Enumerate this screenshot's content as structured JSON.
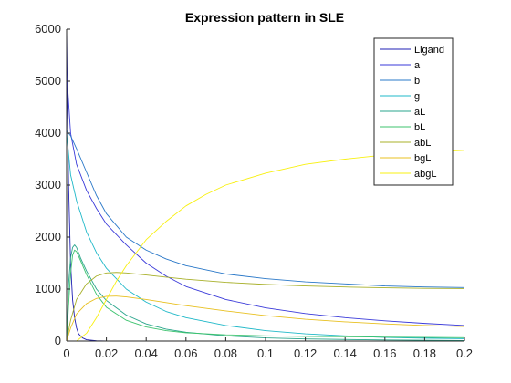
{
  "chart_data": {
    "type": "line",
    "title": "Expression pattern in SLE",
    "xlabel": "",
    "ylabel": "",
    "xlim": [
      0,
      0.2
    ],
    "ylim": [
      0,
      6000
    ],
    "xticks": [
      0,
      0.02,
      0.04,
      0.06,
      0.08,
      0.1,
      0.12,
      0.14,
      0.16,
      0.18,
      0.2
    ],
    "xtick_labels": [
      "0",
      "0.02",
      "0.04",
      "0.06",
      "0.08",
      "0.1",
      "0.12",
      "0.14",
      "0.16",
      "0.18",
      "0.2"
    ],
    "yticks": [
      0,
      1000,
      2000,
      3000,
      4000,
      5000,
      6000
    ],
    "ytick_labels": [
      "0",
      "1000",
      "2000",
      "3000",
      "4000",
      "5000",
      "6000"
    ],
    "grid": false,
    "legend_position": "top-right",
    "series": [
      {
        "name": "Ligand",
        "color": "#1f1fb4",
        "points": [
          [
            0,
            6000
          ],
          [
            0.0005,
            4300
          ],
          [
            0.001,
            3000
          ],
          [
            0.002,
            1500
          ],
          [
            0.003,
            800
          ],
          [
            0.004,
            450
          ],
          [
            0.005,
            250
          ],
          [
            0.006,
            140
          ],
          [
            0.008,
            60
          ],
          [
            0.01,
            25
          ],
          [
            0.015,
            5
          ],
          [
            0.02,
            0
          ],
          [
            0.2,
            0
          ]
        ]
      },
      {
        "name": "a",
        "color": "#3a3ad9",
        "points": [
          [
            0,
            5200
          ],
          [
            0.002,
            4000
          ],
          [
            0.005,
            3400
          ],
          [
            0.01,
            2900
          ],
          [
            0.015,
            2550
          ],
          [
            0.02,
            2250
          ],
          [
            0.03,
            1850
          ],
          [
            0.04,
            1500
          ],
          [
            0.05,
            1250
          ],
          [
            0.06,
            1050
          ],
          [
            0.08,
            800
          ],
          [
            0.1,
            640
          ],
          [
            0.12,
            530
          ],
          [
            0.14,
            450
          ],
          [
            0.16,
            390
          ],
          [
            0.18,
            340
          ],
          [
            0.2,
            300
          ]
        ]
      },
      {
        "name": "b",
        "color": "#2a78c8",
        "points": [
          [
            0,
            4050
          ],
          [
            0.002,
            3950
          ],
          [
            0.005,
            3700
          ],
          [
            0.01,
            3250
          ],
          [
            0.015,
            2800
          ],
          [
            0.02,
            2450
          ],
          [
            0.03,
            2000
          ],
          [
            0.04,
            1750
          ],
          [
            0.05,
            1580
          ],
          [
            0.06,
            1450
          ],
          [
            0.08,
            1290
          ],
          [
            0.1,
            1200
          ],
          [
            0.12,
            1140
          ],
          [
            0.14,
            1100
          ],
          [
            0.16,
            1060
          ],
          [
            0.18,
            1040
          ],
          [
            0.2,
            1030
          ]
        ]
      },
      {
        "name": "g",
        "color": "#1fb8c8",
        "points": [
          [
            0,
            4000
          ],
          [
            0.002,
            3200
          ],
          [
            0.005,
            2700
          ],
          [
            0.01,
            2100
          ],
          [
            0.015,
            1700
          ],
          [
            0.02,
            1400
          ],
          [
            0.03,
            1000
          ],
          [
            0.04,
            750
          ],
          [
            0.05,
            570
          ],
          [
            0.06,
            450
          ],
          [
            0.08,
            300
          ],
          [
            0.1,
            200
          ],
          [
            0.12,
            140
          ],
          [
            0.14,
            100
          ],
          [
            0.16,
            70
          ],
          [
            0.18,
            55
          ],
          [
            0.2,
            45
          ]
        ]
      },
      {
        "name": "aL",
        "color": "#2aa58c",
        "points": [
          [
            0,
            0
          ],
          [
            0.001,
            1100
          ],
          [
            0.002,
            1600
          ],
          [
            0.003,
            1800
          ],
          [
            0.004,
            1850
          ],
          [
            0.005,
            1800
          ],
          [
            0.007,
            1600
          ],
          [
            0.01,
            1350
          ],
          [
            0.015,
            1000
          ],
          [
            0.02,
            780
          ],
          [
            0.03,
            500
          ],
          [
            0.04,
            330
          ],
          [
            0.05,
            230
          ],
          [
            0.06,
            170
          ],
          [
            0.08,
            100
          ],
          [
            0.1,
            60
          ],
          [
            0.12,
            40
          ],
          [
            0.16,
            20
          ],
          [
            0.2,
            10
          ]
        ]
      },
      {
        "name": "bL",
        "color": "#3cc36e",
        "points": [
          [
            0,
            0
          ],
          [
            0.001,
            700
          ],
          [
            0.002,
            1300
          ],
          [
            0.003,
            1650
          ],
          [
            0.004,
            1750
          ],
          [
            0.005,
            1720
          ],
          [
            0.007,
            1550
          ],
          [
            0.01,
            1280
          ],
          [
            0.015,
            900
          ],
          [
            0.02,
            650
          ],
          [
            0.03,
            400
          ],
          [
            0.04,
            270
          ],
          [
            0.05,
            200
          ],
          [
            0.06,
            160
          ],
          [
            0.08,
            120
          ],
          [
            0.1,
            100
          ],
          [
            0.12,
            90
          ],
          [
            0.16,
            75
          ],
          [
            0.2,
            65
          ]
        ]
      },
      {
        "name": "abL",
        "color": "#a8b02a",
        "points": [
          [
            0,
            0
          ],
          [
            0.002,
            400
          ],
          [
            0.005,
            800
          ],
          [
            0.01,
            1100
          ],
          [
            0.015,
            1250
          ],
          [
            0.02,
            1310
          ],
          [
            0.025,
            1320
          ],
          [
            0.03,
            1310
          ],
          [
            0.04,
            1270
          ],
          [
            0.05,
            1230
          ],
          [
            0.06,
            1190
          ],
          [
            0.08,
            1130
          ],
          [
            0.1,
            1090
          ],
          [
            0.12,
            1060
          ],
          [
            0.14,
            1040
          ],
          [
            0.16,
            1025
          ],
          [
            0.18,
            1015
          ],
          [
            0.2,
            1010
          ]
        ]
      },
      {
        "name": "bgL",
        "color": "#e8c020",
        "points": [
          [
            0,
            0
          ],
          [
            0.002,
            250
          ],
          [
            0.005,
            520
          ],
          [
            0.01,
            720
          ],
          [
            0.015,
            820
          ],
          [
            0.02,
            860
          ],
          [
            0.025,
            865
          ],
          [
            0.03,
            850
          ],
          [
            0.04,
            800
          ],
          [
            0.05,
            740
          ],
          [
            0.06,
            680
          ],
          [
            0.08,
            580
          ],
          [
            0.1,
            490
          ],
          [
            0.12,
            420
          ],
          [
            0.14,
            370
          ],
          [
            0.16,
            330
          ],
          [
            0.18,
            300
          ],
          [
            0.2,
            280
          ]
        ]
      },
      {
        "name": "abgL",
        "color": "#f8f010",
        "points": [
          [
            0,
            0
          ],
          [
            0.005,
            0
          ],
          [
            0.01,
            150
          ],
          [
            0.015,
            450
          ],
          [
            0.02,
            800
          ],
          [
            0.025,
            1150
          ],
          [
            0.03,
            1450
          ],
          [
            0.04,
            1950
          ],
          [
            0.05,
            2300
          ],
          [
            0.06,
            2600
          ],
          [
            0.07,
            2820
          ],
          [
            0.08,
            3000
          ],
          [
            0.1,
            3230
          ],
          [
            0.12,
            3400
          ],
          [
            0.14,
            3500
          ],
          [
            0.16,
            3580
          ],
          [
            0.18,
            3630
          ],
          [
            0.2,
            3670
          ]
        ]
      }
    ]
  }
}
